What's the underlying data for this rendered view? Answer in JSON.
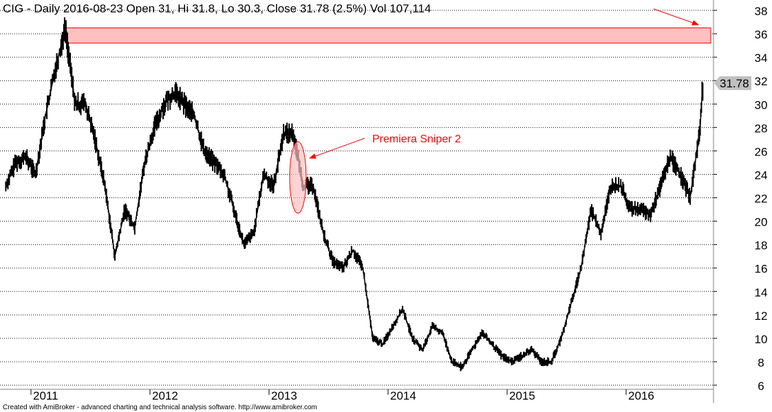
{
  "header": {
    "title": "CIG - Daily 2016-08-23 Open 31, Hi 31.8, Lo 30.3, Close 31.78 (2.5%) Vol 107,114"
  },
  "footer": {
    "text": "Created with AmiBroker - advanced charting and technical analysis software. http://www.amibroker.com"
  },
  "colors": {
    "price": "#000000",
    "annotation": "#ff0000",
    "zone_fill": "#ffc0c0",
    "grid": "#000000",
    "last_label_bg": "#c0c0c0"
  },
  "chart_data": {
    "type": "line",
    "title": "CIG - Daily",
    "ylim": [
      6,
      38
    ],
    "yticks": [
      6,
      8,
      10,
      12,
      14,
      16,
      18,
      20,
      22,
      24,
      26,
      28,
      30,
      32,
      34,
      36,
      38
    ],
    "xticks": [
      "2011",
      "2012",
      "2013",
      "2014",
      "2015",
      "2016"
    ],
    "grid": true,
    "last_value_label": "31.78",
    "series": [
      {
        "name": "CIG Close",
        "x": [
          "2010-10",
          "2010-11",
          "2010-12",
          "2011-01",
          "2011-02",
          "2011-03",
          "2011-04",
          "2011-05",
          "2011-06",
          "2011-07",
          "2011-08",
          "2011-09",
          "2011-10",
          "2011-11",
          "2011-12",
          "2012-01",
          "2012-02",
          "2012-03",
          "2012-04",
          "2012-05",
          "2012-06",
          "2012-07",
          "2012-08",
          "2012-09",
          "2012-10",
          "2012-11",
          "2012-12",
          "2013-01",
          "2013-02",
          "2013-03",
          "2013-04",
          "2013-05",
          "2013-06",
          "2013-07",
          "2013-08",
          "2013-09",
          "2013-10",
          "2013-11",
          "2013-12",
          "2014-01",
          "2014-02",
          "2014-03",
          "2014-04",
          "2014-05",
          "2014-06",
          "2014-07",
          "2014-08",
          "2014-09",
          "2014-10",
          "2014-11",
          "2014-12",
          "2015-01",
          "2015-02",
          "2015-03",
          "2015-04",
          "2015-05",
          "2015-06",
          "2015-07",
          "2015-08",
          "2015-09",
          "2015-10",
          "2015-11",
          "2015-12",
          "2016-01",
          "2016-02",
          "2016-03",
          "2016-04",
          "2016-05",
          "2016-06",
          "2016-07",
          "2016-08",
          "2016-08-23"
        ],
        "values": [
          23,
          25,
          25.5,
          24,
          29,
          33,
          36.5,
          30,
          30,
          27,
          23,
          17,
          21,
          19.5,
          25,
          28,
          30,
          31,
          30,
          29,
          26,
          25,
          24,
          21,
          18,
          19,
          24,
          23,
          27.5,
          27.5,
          23,
          23,
          19,
          16.5,
          16,
          17.5,
          16,
          10,
          9.5,
          11,
          12.5,
          10,
          9,
          11,
          10.5,
          8,
          7.5,
          9,
          10.5,
          9.5,
          8.5,
          8,
          8.5,
          9,
          8,
          8,
          10,
          13,
          16,
          21,
          19,
          23,
          23,
          21,
          21,
          20.5,
          23,
          25.5,
          24,
          22,
          28,
          31.78
        ]
      }
    ],
    "annotations": [
      {
        "type": "zone",
        "label": "",
        "range": [
          35.2,
          36.5
        ],
        "from": "2011-04"
      },
      {
        "type": "ellipse",
        "label": "",
        "around": "2013-03"
      },
      {
        "type": "text-arrow",
        "label": "Premiera Sniper 2"
      },
      {
        "type": "arrow",
        "label": ""
      }
    ]
  }
}
